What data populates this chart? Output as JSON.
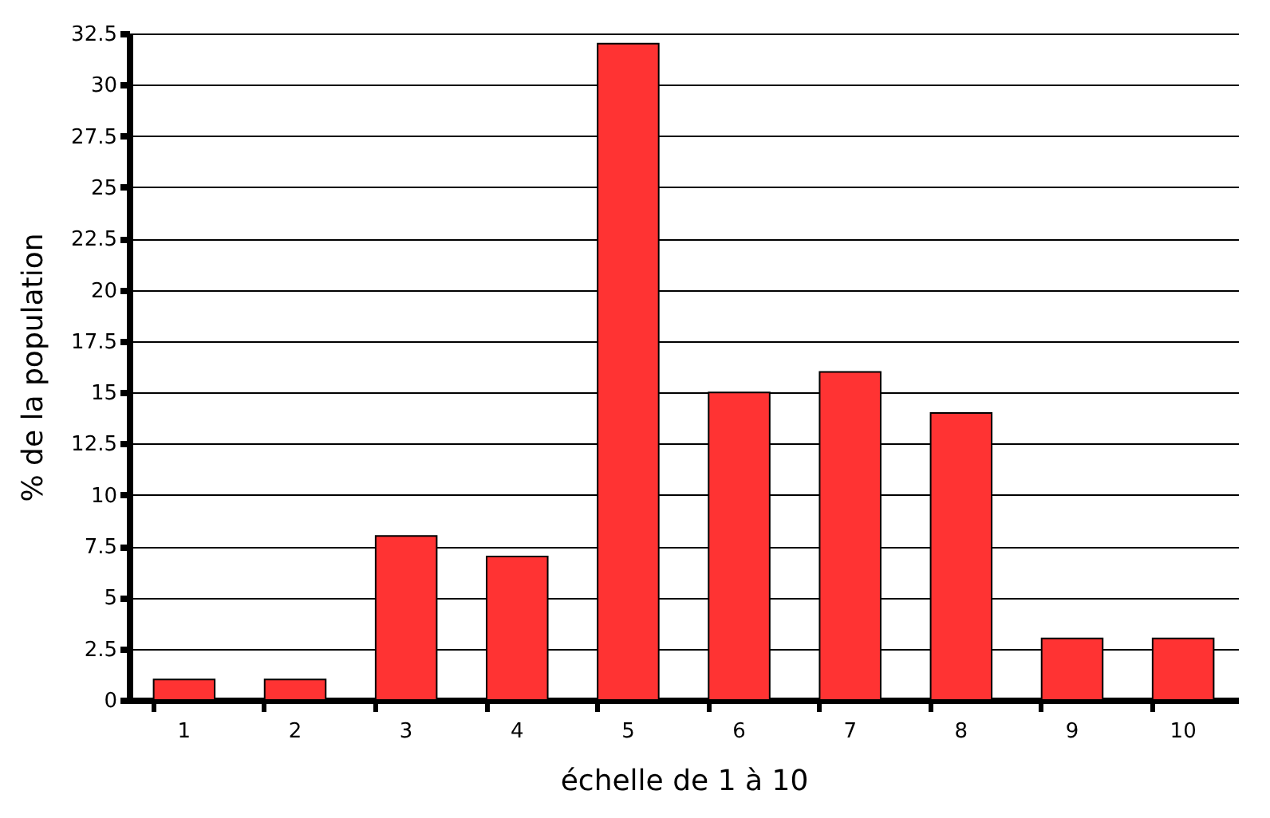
{
  "chart_data": {
    "type": "bar",
    "xlabel": "échelle de 1 à 10",
    "ylabel": "% de la population",
    "categories": [
      "1",
      "2",
      "3",
      "4",
      "5",
      "6",
      "7",
      "8",
      "9",
      "10"
    ],
    "values": [
      1,
      1,
      8,
      7,
      32,
      15,
      16,
      14,
      3,
      3
    ],
    "color": "#ff3333",
    "ylim": [
      0,
      32.5
    ],
    "yticks": [
      0,
      2.5,
      5,
      7.5,
      10,
      12.5,
      15,
      17.5,
      20,
      22.5,
      25,
      27.5,
      30,
      32.5
    ],
    "grid": "y"
  }
}
